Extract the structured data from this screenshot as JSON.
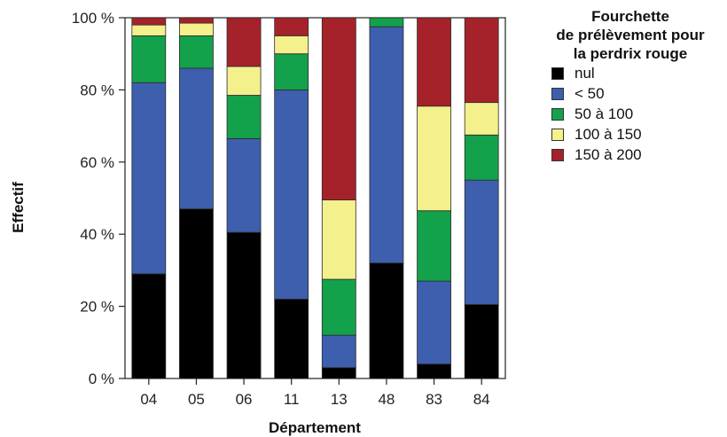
{
  "chart_data": {
    "type": "bar",
    "stacked": true,
    "xlabel": "Département",
    "ylabel": "Effectif",
    "ylim": [
      0,
      100
    ],
    "yticks": [
      0,
      20,
      40,
      60,
      80,
      100
    ],
    "ytick_labels": [
      "0 %",
      "20 %",
      "40 %",
      "60 %",
      "80 %",
      "100 %"
    ],
    "categories": [
      "04",
      "05",
      "06",
      "11",
      "13",
      "48",
      "83",
      "84"
    ],
    "legend_title": [
      "Fourchette",
      "de prélèvement pour",
      "la perdrix rouge"
    ],
    "legend_position": "top-right",
    "series": [
      {
        "name": "nul",
        "color": "#000000",
        "values": [
          29,
          47,
          40.5,
          22,
          3,
          32,
          4,
          20.5
        ]
      },
      {
        "name": "< 50",
        "color": "#3e5fae",
        "values": [
          53,
          39,
          26,
          58,
          9,
          65.5,
          23,
          34.5
        ]
      },
      {
        "name": "50 à 100",
        "color": "#14a14b",
        "values": [
          13,
          9,
          12,
          10,
          15.5,
          2.5,
          19.5,
          12.5
        ]
      },
      {
        "name": "100 à 150",
        "color": "#f4f08c",
        "values": [
          3,
          3.5,
          8,
          5,
          22,
          0,
          29,
          9
        ]
      },
      {
        "name": "150 à 200",
        "color": "#a6222a",
        "values": [
          2,
          1.5,
          13.5,
          5,
          50.5,
          0,
          24.5,
          23.5
        ]
      }
    ]
  }
}
